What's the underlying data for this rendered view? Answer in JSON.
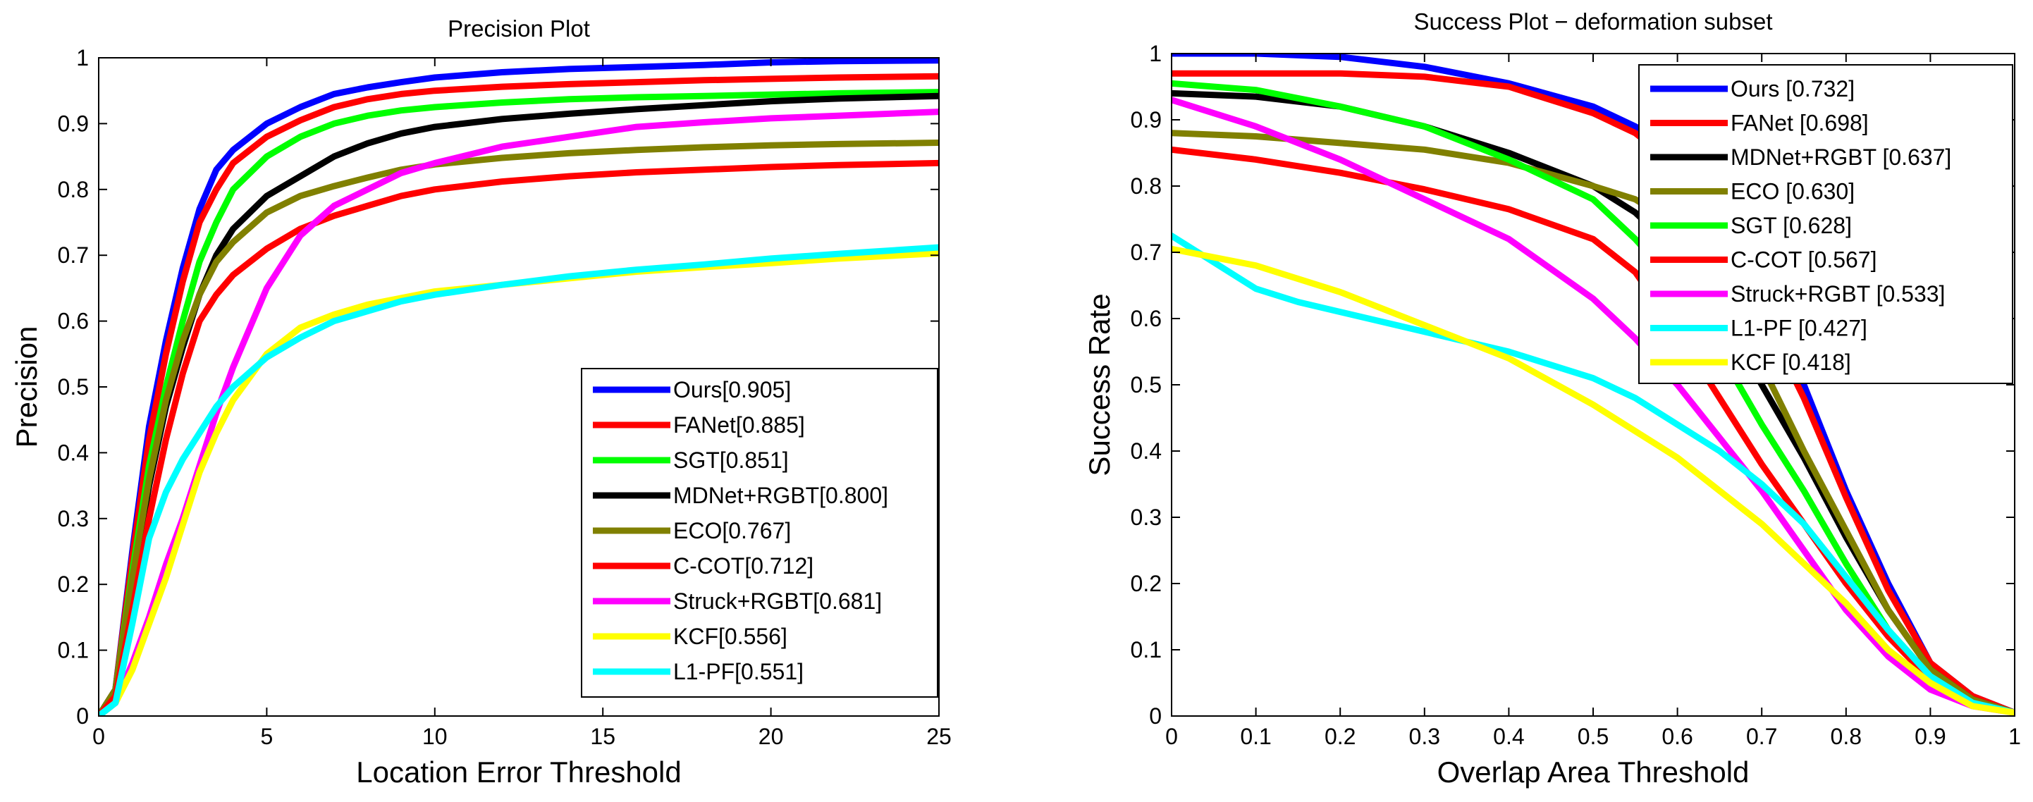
{
  "chart_data": [
    {
      "type": "line",
      "title": "Precision Plot",
      "xlabel": "Location Error Threshold",
      "ylabel": "Precision",
      "xlim": [
        0,
        25
      ],
      "ylim": [
        0,
        1
      ],
      "xticks": [
        0,
        5,
        10,
        15,
        20,
        25
      ],
      "xtick_labels": [
        "0",
        "5",
        "10",
        "15",
        "20",
        "25"
      ],
      "yticks": [
        0,
        0.1,
        0.2,
        0.3,
        0.4,
        0.5,
        0.6,
        0.7,
        0.8,
        0.9,
        1
      ],
      "ytick_labels": [
        "0",
        "0.1",
        "0.2",
        "0.3",
        "0.4",
        "0.5",
        "0.6",
        "0.7",
        "0.8",
        "0.9",
        "1"
      ],
      "legend_position": "bottom-right",
      "grid": false,
      "series": [
        {
          "name": "Ours[0.905]",
          "color": "#0000ff",
          "x": [
            0,
            0.5,
            1,
            1.5,
            2,
            2.5,
            3,
            3.5,
            4,
            5,
            6,
            7,
            8,
            9,
            10,
            12,
            14,
            16,
            18,
            20,
            22,
            25
          ],
          "y": [
            0,
            0.04,
            0.25,
            0.44,
            0.57,
            0.68,
            0.77,
            0.83,
            0.86,
            0.9,
            0.925,
            0.945,
            0.955,
            0.963,
            0.97,
            0.978,
            0.983,
            0.986,
            0.989,
            0.993,
            0.995,
            0.996
          ]
        },
        {
          "name": "FANet[0.885]",
          "color": "#ff0000",
          "x": [
            0,
            0.5,
            1,
            1.5,
            2,
            2.5,
            3,
            3.5,
            4,
            5,
            6,
            7,
            8,
            9,
            10,
            12,
            14,
            16,
            18,
            20,
            22,
            25
          ],
          "y": [
            0,
            0.04,
            0.24,
            0.42,
            0.55,
            0.66,
            0.75,
            0.8,
            0.84,
            0.88,
            0.905,
            0.925,
            0.937,
            0.945,
            0.95,
            0.956,
            0.96,
            0.963,
            0.966,
            0.968,
            0.97,
            0.972
          ]
        },
        {
          "name": "SGT[0.851]",
          "color": "#00ff00",
          "x": [
            0,
            0.5,
            1,
            1.5,
            2,
            2.5,
            3,
            3.5,
            4,
            5,
            6,
            7,
            8,
            9,
            10,
            12,
            14,
            16,
            18,
            20,
            22,
            25
          ],
          "y": [
            0,
            0.04,
            0.22,
            0.38,
            0.5,
            0.6,
            0.69,
            0.75,
            0.8,
            0.85,
            0.88,
            0.9,
            0.912,
            0.92,
            0.925,
            0.932,
            0.937,
            0.94,
            0.942,
            0.944,
            0.946,
            0.948
          ]
        },
        {
          "name": "MDNet+RGBT[0.800]",
          "color": "#000000",
          "x": [
            0,
            0.5,
            1,
            1.5,
            2,
            2.5,
            3,
            3.5,
            4,
            5,
            6,
            7,
            8,
            9,
            10,
            12,
            14,
            16,
            18,
            20,
            22,
            25
          ],
          "y": [
            0,
            0.04,
            0.2,
            0.35,
            0.47,
            0.56,
            0.64,
            0.7,
            0.74,
            0.79,
            0.82,
            0.85,
            0.87,
            0.885,
            0.895,
            0.907,
            0.915,
            0.922,
            0.928,
            0.934,
            0.938,
            0.942
          ]
        },
        {
          "name": "ECO[0.767]",
          "color": "#808000",
          "x": [
            0,
            0.5,
            1,
            1.5,
            2,
            2.5,
            3,
            3.5,
            4,
            5,
            6,
            7,
            8,
            9,
            10,
            12,
            14,
            16,
            18,
            20,
            22,
            25
          ],
          "y": [
            0,
            0.04,
            0.21,
            0.36,
            0.48,
            0.57,
            0.64,
            0.69,
            0.72,
            0.765,
            0.79,
            0.805,
            0.818,
            0.83,
            0.838,
            0.848,
            0.855,
            0.86,
            0.864,
            0.867,
            0.869,
            0.871
          ]
        },
        {
          "name": "C-COT[0.712]",
          "color": "#ff0000",
          "x": [
            0,
            0.5,
            1,
            1.5,
            2,
            2.5,
            3,
            3.5,
            4,
            5,
            6,
            7,
            8,
            9,
            10,
            12,
            14,
            16,
            18,
            20,
            22,
            25
          ],
          "y": [
            0,
            0.03,
            0.16,
            0.3,
            0.42,
            0.52,
            0.6,
            0.64,
            0.67,
            0.71,
            0.74,
            0.76,
            0.775,
            0.79,
            0.8,
            0.812,
            0.82,
            0.826,
            0.83,
            0.834,
            0.837,
            0.84
          ]
        },
        {
          "name": "Struck+RGBT[0.681]",
          "color": "#ff00ff",
          "x": [
            0,
            0.5,
            1,
            1.5,
            2,
            2.5,
            3,
            3.5,
            4,
            5,
            6,
            7,
            8,
            9,
            10,
            12,
            14,
            16,
            18,
            20,
            22,
            25
          ],
          "y": [
            0,
            0.02,
            0.08,
            0.15,
            0.23,
            0.3,
            0.38,
            0.46,
            0.53,
            0.65,
            0.73,
            0.775,
            0.8,
            0.825,
            0.84,
            0.865,
            0.88,
            0.895,
            0.902,
            0.908,
            0.912,
            0.918
          ]
        },
        {
          "name": "KCF[0.556]",
          "color": "#ffff00",
          "x": [
            0,
            0.5,
            1,
            1.5,
            2,
            2.5,
            3,
            3.5,
            4,
            5,
            6,
            7,
            8,
            9,
            10,
            12,
            14,
            16,
            18,
            20,
            22,
            25
          ],
          "y": [
            0,
            0.02,
            0.07,
            0.14,
            0.21,
            0.29,
            0.37,
            0.43,
            0.48,
            0.55,
            0.59,
            0.61,
            0.625,
            0.635,
            0.645,
            0.655,
            0.665,
            0.675,
            0.682,
            0.688,
            0.695,
            0.703
          ]
        },
        {
          "name": "L1-PF[0.551]",
          "color": "#00ffff",
          "x": [
            0,
            0.5,
            1,
            1.5,
            2,
            2.5,
            3,
            3.5,
            4,
            5,
            6,
            7,
            8,
            9,
            10,
            12,
            14,
            16,
            18,
            20,
            22,
            25
          ],
          "y": [
            0,
            0.02,
            0.14,
            0.27,
            0.34,
            0.39,
            0.43,
            0.47,
            0.5,
            0.545,
            0.575,
            0.6,
            0.615,
            0.63,
            0.64,
            0.655,
            0.668,
            0.678,
            0.686,
            0.695,
            0.702,
            0.712
          ]
        }
      ]
    },
    {
      "type": "line",
      "title": "Success Plot − deformation subset",
      "xlabel": "Overlap Area Threshold",
      "ylabel": "Success Rate",
      "xlim": [
        0,
        1
      ],
      "ylim": [
        0,
        1
      ],
      "xticks": [
        0,
        0.1,
        0.2,
        0.3,
        0.4,
        0.5,
        0.6,
        0.7,
        0.8,
        0.9,
        1
      ],
      "xtick_labels": [
        "0",
        "0.1",
        "0.2",
        "0.3",
        "0.4",
        "0.5",
        "0.6",
        "0.7",
        "0.8",
        "0.9",
        "1"
      ],
      "yticks": [
        0,
        0.1,
        0.2,
        0.3,
        0.4,
        0.5,
        0.6,
        0.7,
        0.8,
        0.9,
        1
      ],
      "ytick_labels": [
        "0",
        "0.1",
        "0.2",
        "0.3",
        "0.4",
        "0.5",
        "0.6",
        "0.7",
        "0.8",
        "0.9",
        "1"
      ],
      "legend_position": "top-right",
      "grid": false,
      "series": [
        {
          "name": "Ours [0.732]",
          "color": "#0000ff",
          "x": [
            0,
            0.1,
            0.2,
            0.3,
            0.4,
            0.5,
            0.55,
            0.6,
            0.65,
            0.7,
            0.75,
            0.8,
            0.85,
            0.9,
            0.95,
            1
          ],
          "y": [
            1.0,
            1.0,
            0.995,
            0.98,
            0.955,
            0.92,
            0.89,
            0.85,
            0.76,
            0.63,
            0.5,
            0.34,
            0.2,
            0.08,
            0.03,
            0.005
          ]
        },
        {
          "name": "FANet [0.698]",
          "color": "#ff0000",
          "x": [
            0,
            0.1,
            0.2,
            0.3,
            0.4,
            0.5,
            0.55,
            0.6,
            0.65,
            0.7,
            0.75,
            0.8,
            0.85,
            0.9,
            0.95,
            1
          ],
          "y": [
            0.97,
            0.97,
            0.97,
            0.965,
            0.95,
            0.91,
            0.88,
            0.83,
            0.74,
            0.61,
            0.48,
            0.33,
            0.19,
            0.08,
            0.03,
            0.005
          ]
        },
        {
          "name": "MDNet+RGBT [0.637]",
          "color": "#000000",
          "x": [
            0,
            0.1,
            0.2,
            0.3,
            0.4,
            0.5,
            0.55,
            0.6,
            0.65,
            0.7,
            0.75,
            0.8,
            0.85,
            0.9,
            0.95,
            1
          ],
          "y": [
            0.94,
            0.935,
            0.92,
            0.89,
            0.85,
            0.8,
            0.76,
            0.7,
            0.61,
            0.5,
            0.39,
            0.27,
            0.16,
            0.07,
            0.025,
            0.005
          ]
        },
        {
          "name": "ECO [0.630]",
          "color": "#808000",
          "x": [
            0,
            0.1,
            0.2,
            0.3,
            0.4,
            0.5,
            0.55,
            0.6,
            0.65,
            0.7,
            0.75,
            0.8,
            0.85,
            0.9,
            0.95,
            1
          ],
          "y": [
            0.88,
            0.875,
            0.865,
            0.855,
            0.835,
            0.8,
            0.78,
            0.74,
            0.65,
            0.53,
            0.4,
            0.28,
            0.16,
            0.07,
            0.025,
            0.005
          ]
        },
        {
          "name": "SGT [0.628]",
          "color": "#00ff00",
          "x": [
            0,
            0.1,
            0.2,
            0.3,
            0.4,
            0.5,
            0.55,
            0.6,
            0.65,
            0.7,
            0.75,
            0.8,
            0.85,
            0.9,
            0.95,
            1
          ],
          "y": [
            0.955,
            0.945,
            0.92,
            0.89,
            0.84,
            0.78,
            0.72,
            0.65,
            0.55,
            0.44,
            0.34,
            0.23,
            0.13,
            0.06,
            0.02,
            0.005
          ]
        },
        {
          "name": "C-COT [0.567]",
          "color": "#ff0000",
          "x": [
            0,
            0.1,
            0.2,
            0.3,
            0.4,
            0.5,
            0.55,
            0.6,
            0.65,
            0.7,
            0.75,
            0.8,
            0.85,
            0.9,
            0.95,
            1
          ],
          "y": [
            0.855,
            0.84,
            0.82,
            0.795,
            0.765,
            0.72,
            0.67,
            0.58,
            0.48,
            0.38,
            0.29,
            0.2,
            0.12,
            0.055,
            0.02,
            0.005
          ]
        },
        {
          "name": "Struck+RGBT [0.533]",
          "color": "#ff00ff",
          "x": [
            0,
            0.1,
            0.2,
            0.3,
            0.4,
            0.5,
            0.55,
            0.6,
            0.65,
            0.7,
            0.75,
            0.8,
            0.85,
            0.9,
            0.95,
            1
          ],
          "y": [
            0.93,
            0.89,
            0.84,
            0.78,
            0.72,
            0.63,
            0.57,
            0.5,
            0.42,
            0.34,
            0.25,
            0.16,
            0.09,
            0.04,
            0.015,
            0.005
          ]
        },
        {
          "name": "L1-PF [0.427]",
          "color": "#00ffff",
          "x": [
            0,
            0.05,
            0.1,
            0.15,
            0.2,
            0.3,
            0.4,
            0.5,
            0.55,
            0.6,
            0.65,
            0.7,
            0.75,
            0.8,
            0.85,
            0.9,
            0.95,
            1
          ],
          "y": [
            0.725,
            0.685,
            0.645,
            0.625,
            0.61,
            0.58,
            0.55,
            0.51,
            0.48,
            0.44,
            0.4,
            0.35,
            0.29,
            0.21,
            0.13,
            0.06,
            0.02,
            0.005
          ]
        },
        {
          "name": "KCF [0.418]",
          "color": "#ffff00",
          "x": [
            0,
            0.1,
            0.2,
            0.3,
            0.4,
            0.5,
            0.55,
            0.6,
            0.65,
            0.7,
            0.75,
            0.8,
            0.85,
            0.9,
            0.95,
            1
          ],
          "y": [
            0.705,
            0.68,
            0.64,
            0.59,
            0.54,
            0.47,
            0.43,
            0.39,
            0.34,
            0.29,
            0.23,
            0.17,
            0.1,
            0.05,
            0.015,
            0.005
          ]
        }
      ]
    }
  ]
}
